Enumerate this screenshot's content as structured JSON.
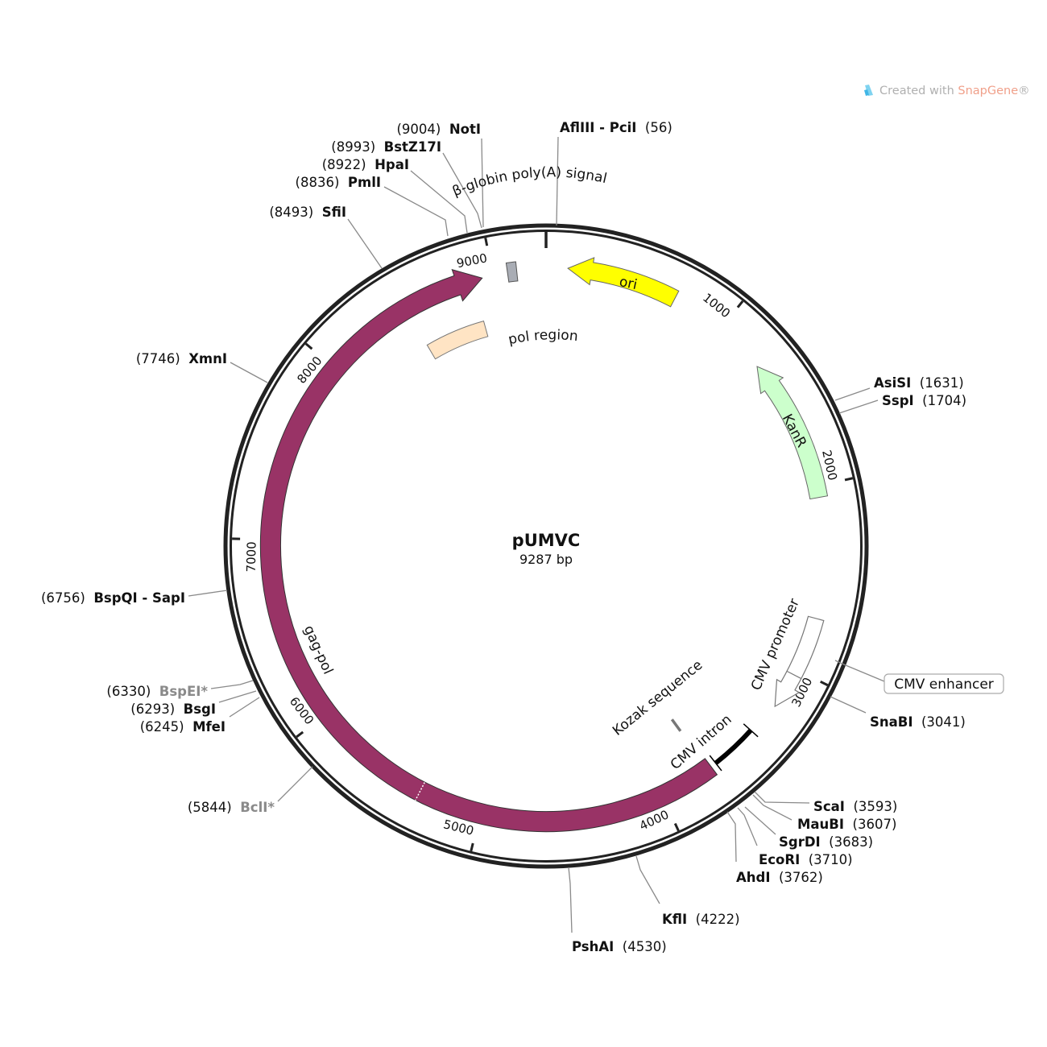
{
  "plasmid": {
    "name": "pUMVC",
    "length_label": "9287 bp",
    "length": 9287
  },
  "watermark": {
    "prefix": "Created with ",
    "brand": "SnapGene",
    "suffix": "®",
    "icon": "snapgene-logo-icon"
  },
  "ticks": [
    "1000",
    "2000",
    "3000",
    "4000",
    "5000",
    "6000",
    "7000",
    "8000",
    "9000"
  ],
  "features": [
    {
      "label": "gag-pol",
      "start": 3694,
      "end": 8941,
      "direction": "forward",
      "color": "#993366"
    },
    {
      "label": "ori",
      "start": 116,
      "end": 709,
      "direction": "reverse",
      "color": "#ffff00"
    },
    {
      "label": "KanR",
      "start": 1280,
      "end": 2061,
      "direction": "reverse",
      "color": "#ccffcc"
    },
    {
      "label": "CMV promoter",
      "start": 2709,
      "end": 3225,
      "direction": "forward",
      "color": "#ffffff"
    },
    {
      "label": "CMV intron",
      "start": 3405,
      "end": 3663,
      "direction": "none",
      "color": "#000000"
    },
    {
      "label": "Kozak sequence",
      "start": 3715,
      "end": 3715,
      "direction": "none",
      "color": "#777777"
    },
    {
      "label": "pol region",
      "start": 8497,
      "end": 8887,
      "direction": "none",
      "color": "#ffe4c4"
    },
    {
      "label": "β-globin poly(A) signal",
      "start": 9080,
      "end": 9130,
      "direction": "none",
      "color": "#a9adb5"
    },
    {
      "label": "CMV enhancer",
      "start": 2879,
      "end": 2879,
      "direction": "none",
      "color": "#ffffff"
    }
  ],
  "enzymes": [
    {
      "name": "NotI",
      "position": "(9004)"
    },
    {
      "name": "BstZ17I",
      "position": "(8993)"
    },
    {
      "name": "HpaI",
      "position": "(8922)"
    },
    {
      "name": "PmlI",
      "position": "(8836)"
    },
    {
      "name": "SfiI",
      "position": "(8493)"
    },
    {
      "name": "AflIII - PciI",
      "position": "(56)"
    },
    {
      "name": "AsiSI",
      "position": "(1631)"
    },
    {
      "name": "SspI",
      "position": "(1704)"
    },
    {
      "name": "SnaBI",
      "position": "(3041)"
    },
    {
      "name": "ScaI",
      "position": "(3593)"
    },
    {
      "name": "MauBI",
      "position": "(3607)"
    },
    {
      "name": "SgrDI",
      "position": "(3683)"
    },
    {
      "name": "EcoRI",
      "position": "(3710)"
    },
    {
      "name": "AhdI",
      "position": "(3762)"
    },
    {
      "name": "KflI",
      "position": "(4222)"
    },
    {
      "name": "PshAI",
      "position": "(4530)"
    },
    {
      "name": "BclI*",
      "position": "(5844)",
      "methylation_sensitive": true
    },
    {
      "name": "MfeI",
      "position": "(6245)"
    },
    {
      "name": "BsgI",
      "position": "(6293)"
    },
    {
      "name": "BspEI*",
      "position": "(6330)",
      "methylation_sensitive": true
    },
    {
      "name": "BspQI - SapI",
      "position": "(6756)"
    },
    {
      "name": "XmnI",
      "position": "(7746)"
    }
  ]
}
